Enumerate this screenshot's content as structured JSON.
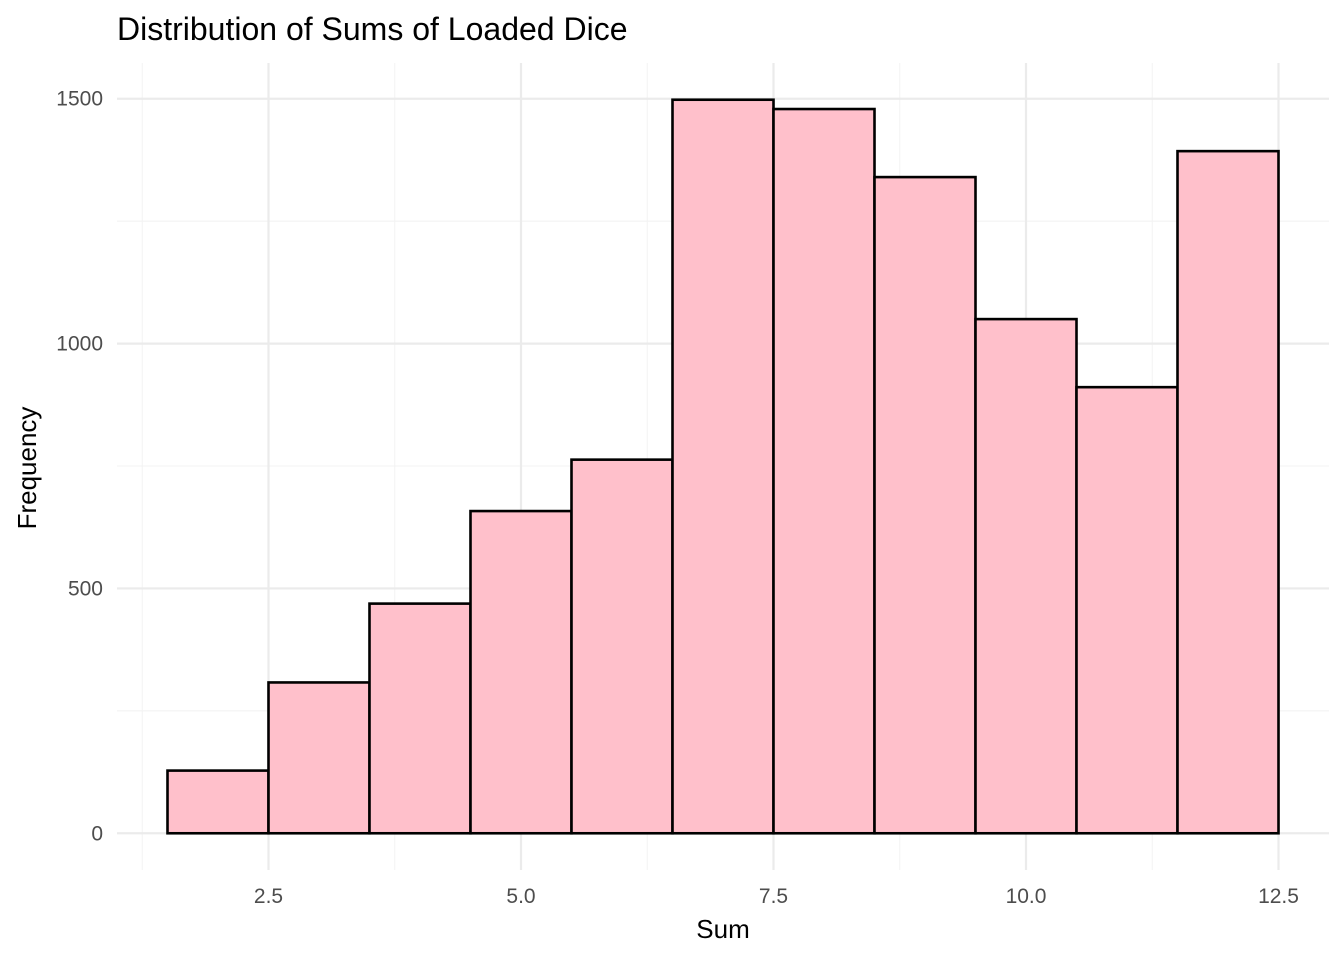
{
  "chart_data": {
    "type": "bar",
    "title": "Distribution of Sums of Loaded Dice",
    "xlabel": "Sum",
    "ylabel": "Frequency",
    "x_bins": [
      {
        "from": 1.5,
        "to": 2.5,
        "value": 128
      },
      {
        "from": 2.5,
        "to": 3.5,
        "value": 308
      },
      {
        "from": 3.5,
        "to": 4.5,
        "value": 469
      },
      {
        "from": 4.5,
        "to": 5.5,
        "value": 658
      },
      {
        "from": 5.5,
        "to": 6.5,
        "value": 763
      },
      {
        "from": 6.5,
        "to": 7.5,
        "value": 1498
      },
      {
        "from": 7.5,
        "to": 8.5,
        "value": 1479
      },
      {
        "from": 8.5,
        "to": 9.5,
        "value": 1340
      },
      {
        "from": 9.5,
        "to": 10.5,
        "value": 1050
      },
      {
        "from": 10.5,
        "to": 11.5,
        "value": 911
      },
      {
        "from": 11.5,
        "to": 12.5,
        "value": 1393
      }
    ],
    "x_ticks": [
      2.5,
      5.0,
      7.5,
      10.0,
      12.5
    ],
    "x_tick_labels": [
      "2.5",
      "5.0",
      "7.5",
      "10.0",
      "12.5"
    ],
    "y_ticks": [
      0,
      500,
      1000,
      1500
    ],
    "y_tick_labels": [
      "0",
      "500",
      "1000",
      "1500"
    ],
    "xlim": [
      1.0,
      13.0
    ],
    "ylim": [
      -75,
      1573
    ],
    "grid": true,
    "colors": {
      "bar_fill": "#FFC0CB",
      "bar_stroke": "#000000",
      "grid_major": "#EBEBEB",
      "grid_minor": "#F3F3F3",
      "background": "#FFFFFF"
    }
  }
}
